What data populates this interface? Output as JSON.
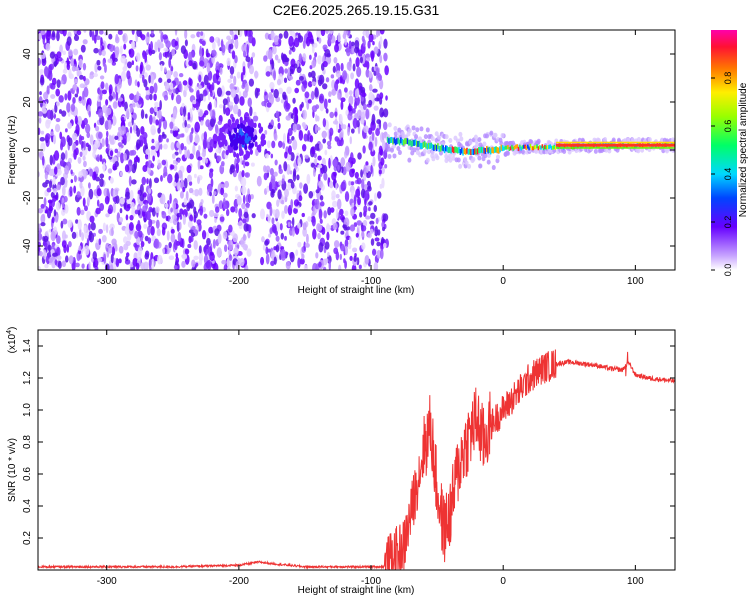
{
  "title": "C2E6.2025.265.19.15.G31",
  "chart_data": [
    {
      "type": "heatmap",
      "title": "C2E6.2025.265.19.15.G31",
      "xlabel": "Height of straight line (km)",
      "ylabel": "Frequency (Hz)",
      "xlim": [
        -352,
        130
      ],
      "ylim": [
        -50,
        50
      ],
      "xticks": [
        -300,
        -200,
        -100,
        0,
        100
      ],
      "yticks": [
        -40,
        -20,
        0,
        20,
        40
      ],
      "colorbar": {
        "label": "Normalized spectral amplitude",
        "range": [
          0.0,
          1.0
        ],
        "ticks": [
          0.0,
          0.2,
          0.4,
          0.6,
          0.8
        ]
      },
      "features": {
        "noise_region_x": [
          -352,
          -88
        ],
        "gap_x": [
          -190,
          -180
        ],
        "blob_center": {
          "x": -198,
          "y": 5
        },
        "signal_line": [
          {
            "x": -88,
            "y": 4
          },
          {
            "x": -70,
            "y": 3
          },
          {
            "x": -50,
            "y": 1
          },
          {
            "x": -30,
            "y": -1
          },
          {
            "x": -10,
            "y": 0
          },
          {
            "x": 10,
            "y": 1
          },
          {
            "x": 40,
            "y": 1.5
          },
          {
            "x": 80,
            "y": 2
          },
          {
            "x": 130,
            "y": 2
          }
        ]
      }
    },
    {
      "type": "line",
      "title": "",
      "xlabel": "Height of straight line (km)",
      "ylabel": "SNR (10 * v/v)",
      "yscale_label": "(x10",
      "yscale_exp": "4",
      "xlim": [
        -352,
        130
      ],
      "ylim": [
        0,
        1.5
      ],
      "xticks": [
        -300,
        -200,
        -100,
        0,
        100
      ],
      "yticks": [
        0.2,
        0.4,
        0.6,
        0.8,
        1.0,
        1.2,
        1.4
      ],
      "series": [
        {
          "name": "SNR",
          "color": "#ee3333",
          "x": [
            -352,
            -300,
            -250,
            -200,
            -185,
            -175,
            -150,
            -120,
            -100,
            -90,
            -75,
            -70,
            -65,
            -60,
            -55,
            -50,
            -45,
            -40,
            -35,
            -30,
            -25,
            -20,
            -15,
            -10,
            -5,
            0,
            5,
            10,
            20,
            30,
            40,
            50,
            60,
            70,
            80,
            90,
            95,
            100,
            110,
            120,
            130
          ],
          "y": [
            0.02,
            0.02,
            0.02,
            0.03,
            0.05,
            0.04,
            0.02,
            0.02,
            0.02,
            0.02,
            0.15,
            0.35,
            0.55,
            0.75,
            0.9,
            0.5,
            0.25,
            0.35,
            0.6,
            0.75,
            0.85,
            0.95,
            0.8,
            0.9,
            0.95,
            1.0,
            1.05,
            1.1,
            1.2,
            1.26,
            1.29,
            1.3,
            1.29,
            1.28,
            1.26,
            1.25,
            1.3,
            1.22,
            1.2,
            1.19,
            1.18
          ]
        }
      ]
    }
  ]
}
